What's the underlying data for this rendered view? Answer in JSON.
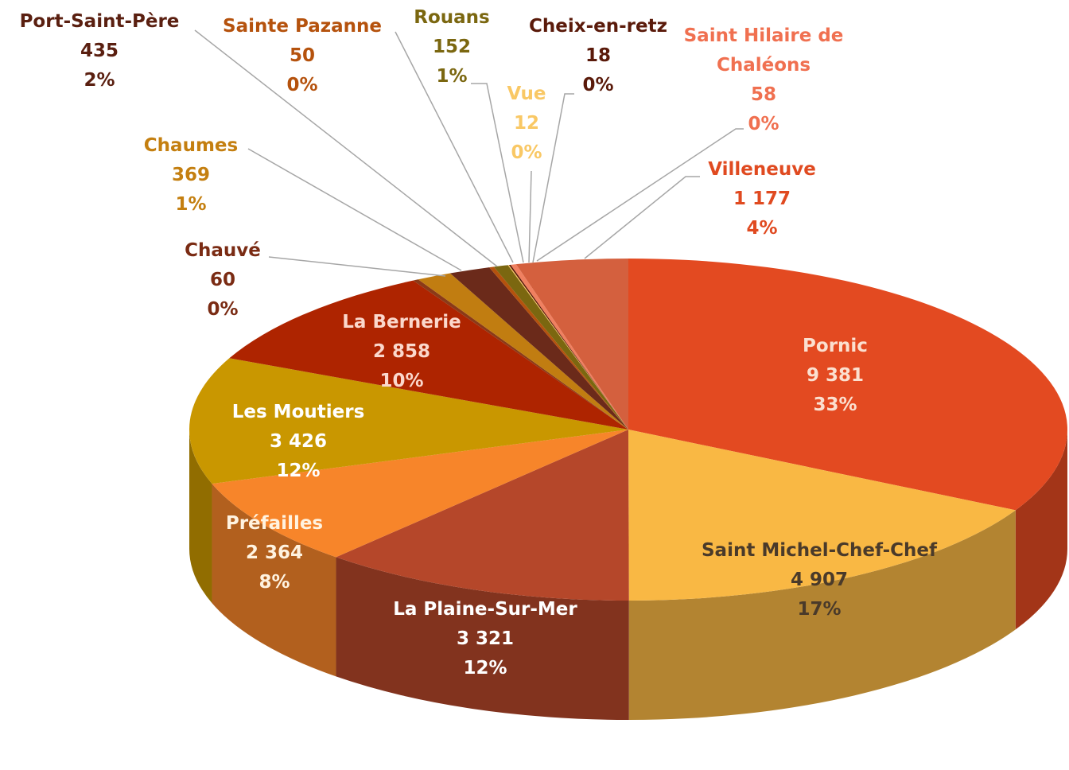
{
  "chart_data": {
    "type": "pie3d",
    "categories": [
      "Pornic",
      "Saint Michel-Chef-Chef",
      "La Plaine-Sur-Mer",
      "Préfailles",
      "Les Moutiers",
      "La Bernerie",
      "Chauvé",
      "Chaumes",
      "Port-Saint-Père",
      "Sainte Pazanne",
      "Rouans",
      "Vue",
      "Cheix-en-retz",
      "Saint Hilaire de Chaléons",
      "Villeneuve"
    ],
    "values": [
      9381,
      4907,
      3321,
      2364,
      3426,
      2858,
      60,
      369,
      435,
      50,
      152,
      12,
      18,
      58,
      1177
    ],
    "value_labels": [
      "9 381",
      "4 907",
      "3 321",
      "2 364",
      "3 426",
      "2 858",
      "60",
      "369",
      "435",
      "50",
      "152",
      "12",
      "18",
      "58",
      "1 177"
    ],
    "percent_labels": [
      "33%",
      "17%",
      "12%",
      "8%",
      "12%",
      "10%",
      "0%",
      "1%",
      "2%",
      "0%",
      "1%",
      "0%",
      "0%",
      "0%",
      "4%"
    ],
    "colors": [
      "#e34a21",
      "#f9b844",
      "#b5472a",
      "#f7852a",
      "#c99700",
      "#ae2400",
      "#8a3a18",
      "#c17d11",
      "#6b2a1a",
      "#b5520d",
      "#7b6710",
      "#f9c865",
      "#5a1a0a",
      "#f08060",
      "#d4603e"
    ]
  }
}
